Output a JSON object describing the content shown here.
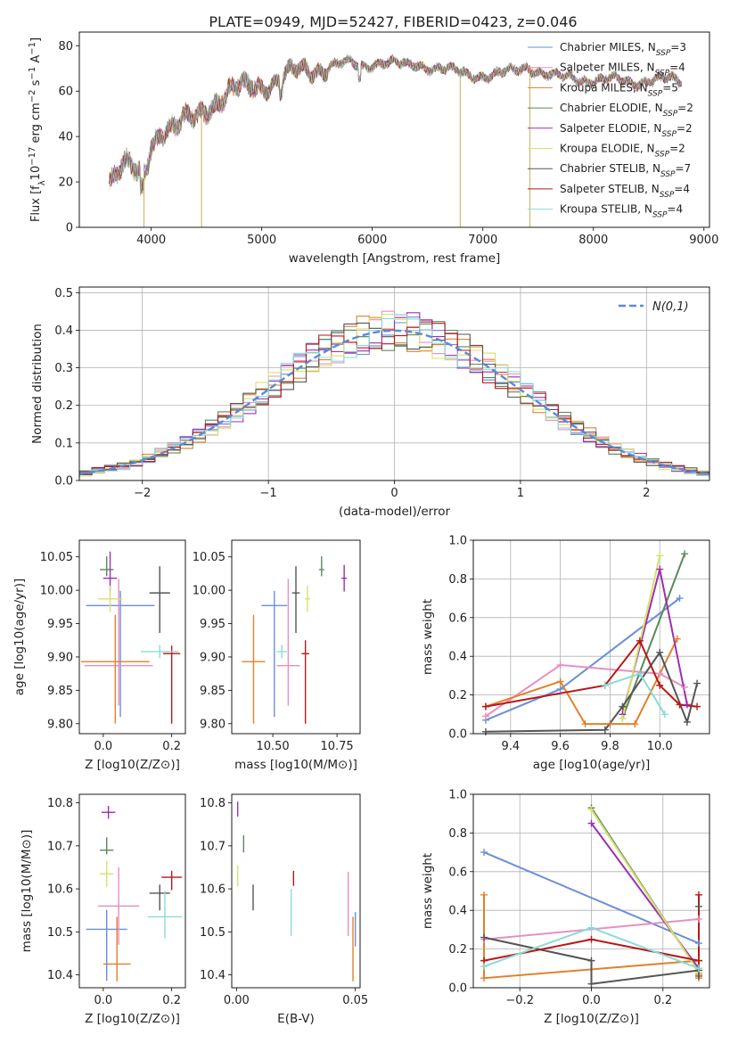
{
  "suptitle": "PLATE=0949, MJD=52427, FIBERID=0423, z=0.046",
  "series": [
    {
      "name": "Chabrier MILES",
      "nssp": "3",
      "color": "#6a8fd8"
    },
    {
      "name": "Salpeter MILES",
      "nssp": "4",
      "color": "#e98fc2"
    },
    {
      "name": "Kroupa MILES",
      "nssp": "5",
      "color": "#e0812c"
    },
    {
      "name": "Chabrier ELODIE",
      "nssp": "2",
      "color": "#5a8a5a"
    },
    {
      "name": "Salpeter ELODIE",
      "nssp": "2",
      "color": "#9b2fb0"
    },
    {
      "name": "Kroupa ELODIE",
      "nssp": "2",
      "color": "#d8e26a"
    },
    {
      "name": "Chabrier STELIB",
      "nssp": "7",
      "color": "#555555"
    },
    {
      "name": "Salpeter STELIB",
      "nssp": "4",
      "color": "#b81818"
    },
    {
      "name": "Kroupa STELIB",
      "nssp": "4",
      "color": "#8adbd8"
    }
  ],
  "chart_data": [
    {
      "id": "spectrum",
      "type": "line",
      "xlabel": "wavelength [Angstrom, rest frame]",
      "ylabel": "Flux [f_λ 10^-17 erg cm^-2 s^-1 A^-1]",
      "xlim": [
        3350,
        9050
      ],
      "ylim": [
        0,
        86
      ],
      "xticks": [
        4000,
        5000,
        6000,
        7000,
        8000,
        9000
      ],
      "yticks": [
        0,
        20,
        40,
        60,
        80
      ],
      "grid": false,
      "legend_loc": "right",
      "profile": [
        [
          3620,
          21
        ],
        [
          3700,
          26
        ],
        [
          3800,
          27
        ],
        [
          3880,
          22
        ],
        [
          3950,
          24
        ],
        [
          4000,
          37
        ],
        [
          4100,
          44
        ],
        [
          4200,
          44
        ],
        [
          4300,
          46
        ],
        [
          4400,
          48
        ],
        [
          4500,
          53
        ],
        [
          4600,
          56
        ],
        [
          4700,
          59
        ],
        [
          4800,
          61
        ],
        [
          4900,
          62
        ],
        [
          5000,
          63
        ],
        [
          5100,
          64
        ],
        [
          5200,
          66
        ],
        [
          5300,
          68
        ],
        [
          5400,
          69
        ],
        [
          5500,
          70
        ],
        [
          5600,
          71
        ],
        [
          5700,
          72
        ],
        [
          5800,
          72
        ],
        [
          5900,
          71
        ],
        [
          6000,
          72
        ],
        [
          6100,
          73
        ],
        [
          6200,
          72
        ],
        [
          6300,
          71
        ],
        [
          6400,
          72
        ],
        [
          6500,
          71
        ],
        [
          6600,
          70
        ],
        [
          6700,
          69
        ],
        [
          6800,
          68
        ],
        [
          6900,
          67
        ],
        [
          7000,
          67
        ],
        [
          7100,
          67
        ],
        [
          7200,
          68
        ],
        [
          7300,
          69
        ],
        [
          7400,
          71
        ],
        [
          7500,
          69
        ],
        [
          7600,
          67
        ],
        [
          7700,
          66
        ],
        [
          7800,
          66
        ],
        [
          7900,
          65
        ],
        [
          8000,
          65
        ],
        [
          8100,
          65
        ],
        [
          8200,
          65
        ],
        [
          8300,
          64
        ],
        [
          8400,
          64
        ],
        [
          8500,
          65
        ],
        [
          8600,
          65
        ],
        [
          8700,
          65
        ],
        [
          8800,
          64
        ]
      ],
      "dips": [
        [
          3935,
          0
        ],
        [
          4455,
          0
        ],
        [
          6795,
          0
        ],
        [
          7425,
          0
        ]
      ]
    },
    {
      "id": "residuals",
      "type": "line",
      "xlabel": "(data-model)/error",
      "ylabel": "Normed distribution",
      "xlim": [
        -2.5,
        2.5
      ],
      "ylim": [
        0,
        0.515
      ],
      "xticks": [
        -2,
        -1,
        0,
        1,
        2
      ],
      "yticks": [
        0.0,
        0.1,
        0.2,
        0.3,
        0.4,
        0.5
      ],
      "grid": true,
      "legend_loc": "top-right",
      "reference_label": "N(0,1)"
    },
    {
      "id": "age-vs-Z",
      "type": "scatter",
      "xlabel": "Z [log10(Z/Z⊙)]",
      "ylabel": "age [log10(age/yr)]",
      "xlim": [
        -0.07,
        0.24
      ],
      "ylim": [
        9.785,
        10.075
      ],
      "xticks": [
        0.0,
        0.2
      ],
      "yticks": [
        9.8,
        9.85,
        9.9,
        9.95,
        10.0,
        10.05
      ],
      "points": [
        {
          "series": 0,
          "x": 0.05,
          "y": 9.977,
          "xerr": 0.1,
          "yerr": [
            0.167,
            0.022
          ]
        },
        {
          "series": 1,
          "x": 0.045,
          "y": 9.887,
          "xerr": 0.1,
          "yerr": [
            0.06,
            0.13
          ]
        },
        {
          "series": 2,
          "x": 0.035,
          "y": 9.893,
          "xerr": 0.1,
          "yerr": [
            0.093,
            0.07
          ]
        },
        {
          "series": 3,
          "x": 0.01,
          "y": 10.031,
          "xerr": 0.02,
          "yerr": [
            0.01,
            0.02
          ]
        },
        {
          "series": 4,
          "x": 0.02,
          "y": 10.018,
          "xerr": 0.02,
          "yerr": [
            0.02,
            0.04
          ]
        },
        {
          "series": 5,
          "x": 0.02,
          "y": 9.987,
          "xerr": 0.035,
          "yerr": [
            0.02,
            0.02
          ]
        },
        {
          "series": 6,
          "x": 0.165,
          "y": 9.996,
          "xerr": 0.03,
          "yerr": [
            0.06,
            0.04
          ]
        },
        {
          "series": 7,
          "x": 0.2,
          "y": 9.905,
          "xerr": 0.025,
          "yerr": [
            0.105,
            0.012
          ]
        },
        {
          "series": 8,
          "x": 0.165,
          "y": 9.908,
          "xerr": 0.055,
          "yerr": [
            0.01,
            0.01
          ]
        }
      ]
    },
    {
      "id": "age-vs-mass",
      "type": "scatter",
      "xlabel": "mass [log10(M/M⊙)]",
      "ylabel": "",
      "xlim": [
        10.34,
        10.84
      ],
      "ylim": [
        9.785,
        10.075
      ],
      "xticks": [
        10.5,
        10.75
      ],
      "yticks": [
        9.8,
        9.85,
        9.9,
        9.95,
        10.0,
        10.05
      ],
      "points": [
        {
          "series": 0,
          "x": 10.506,
          "y": 9.977,
          "xerr": 0.05,
          "yerr": [
            0.167,
            0.022
          ]
        },
        {
          "series": 1,
          "x": 10.56,
          "y": 9.887,
          "xerr": 0.045,
          "yerr": [
            0.06,
            0.13
          ]
        },
        {
          "series": 2,
          "x": 10.425,
          "y": 9.893,
          "xerr": 0.045,
          "yerr": [
            0.093,
            0.07
          ]
        },
        {
          "series": 3,
          "x": 10.69,
          "y": 10.031,
          "xerr": 0.01,
          "yerr": [
            0.01,
            0.02
          ]
        },
        {
          "series": 4,
          "x": 10.778,
          "y": 10.018,
          "xerr": 0.01,
          "yerr": [
            0.02,
            0.02
          ]
        },
        {
          "series": 5,
          "x": 10.635,
          "y": 9.987,
          "xerr": 0.01,
          "yerr": [
            0.02,
            0.02
          ]
        },
        {
          "series": 6,
          "x": 10.59,
          "y": 9.996,
          "xerr": 0.015,
          "yerr": [
            0.06,
            0.04
          ]
        },
        {
          "series": 7,
          "x": 10.627,
          "y": 9.905,
          "xerr": 0.015,
          "yerr": [
            0.105,
            0.02
          ]
        },
        {
          "series": 8,
          "x": 10.535,
          "y": 9.908,
          "xerr": 0.02,
          "yerr": [
            0.01,
            0.01
          ]
        }
      ]
    },
    {
      "id": "weight-vs-age",
      "type": "line",
      "xlabel": "age [log10(age/yr)]",
      "ylabel": "mass weight",
      "xlim": [
        9.25,
        10.2
      ],
      "ylim": [
        0.0,
        1.0
      ],
      "xticks": [
        9.4,
        9.6,
        9.8,
        10.0
      ],
      "yticks": [
        0.0,
        0.2,
        0.4,
        0.6,
        0.8,
        1.0
      ],
      "grid": true,
      "lines": [
        {
          "series": 0,
          "points": [
            [
              9.3,
              0.07
            ],
            [
              9.6,
              0.23
            ],
            [
              10.08,
              0.7
            ]
          ]
        },
        {
          "series": 1,
          "points": [
            [
              9.3,
              0.09
            ],
            [
              9.6,
              0.355
            ],
            [
              10.0,
              0.31
            ],
            [
              10.1,
              0.24
            ]
          ]
        },
        {
          "series": 2,
          "points": [
            [
              9.3,
              0.14
            ],
            [
              9.6,
              0.27
            ],
            [
              9.7,
              0.05
            ],
            [
              9.8,
              0.05
            ],
            [
              9.9,
              0.05
            ],
            [
              10.07,
              0.49
            ]
          ]
        },
        {
          "series": 3,
          "points": [
            [
              9.85,
              0.08
            ],
            [
              10.1,
              0.93
            ]
          ]
        },
        {
          "series": 4,
          "points": [
            [
              9.85,
              0.1
            ],
            [
              10.0,
              0.85
            ],
            [
              10.11,
              0.15
            ]
          ]
        },
        {
          "series": 5,
          "points": [
            [
              9.85,
              0.08
            ],
            [
              10.0,
              0.92
            ]
          ]
        },
        {
          "series": 6,
          "points": [
            [
              9.3,
              0.01
            ],
            [
              9.78,
              0.02
            ],
            [
              9.85,
              0.14
            ],
            [
              10.0,
              0.42
            ],
            [
              10.11,
              0.06
            ],
            [
              10.15,
              0.26
            ]
          ]
        },
        {
          "series": 7,
          "points": [
            [
              9.3,
              0.14
            ],
            [
              9.78,
              0.25
            ],
            [
              9.92,
              0.48
            ],
            [
              10.0,
              0.25
            ],
            [
              10.08,
              0.15
            ],
            [
              10.15,
              0.14
            ]
          ]
        },
        {
          "series": 8,
          "points": [
            [
              9.78,
              0.25
            ],
            [
              9.92,
              0.31
            ],
            [
              10.02,
              0.1
            ]
          ]
        }
      ]
    },
    {
      "id": "mass-vs-Z",
      "type": "scatter",
      "xlabel": "Z [log10(Z/Z⊙)]",
      "ylabel": "mass [log10(M/M⊙)]",
      "xlim": [
        -0.07,
        0.24
      ],
      "ylim": [
        10.37,
        10.82
      ],
      "xticks": [
        0.0,
        0.2
      ],
      "yticks": [
        10.4,
        10.5,
        10.6,
        10.7,
        10.8
      ],
      "points": [
        {
          "series": 0,
          "x": 0.01,
          "y": 10.506,
          "xerr": 0.06,
          "yerr": [
            0.12,
            0.045
          ]
        },
        {
          "series": 1,
          "x": 0.045,
          "y": 10.56,
          "xerr": 0.06,
          "yerr": [
            0.09,
            0.09
          ]
        },
        {
          "series": 2,
          "x": 0.04,
          "y": 10.425,
          "xerr": 0.04,
          "yerr": [
            0.04,
            0.11
          ]
        },
        {
          "series": 3,
          "x": 0.01,
          "y": 10.69,
          "xerr": 0.02,
          "yerr": [
            0.01,
            0.03
          ]
        },
        {
          "series": 4,
          "x": 0.015,
          "y": 10.778,
          "xerr": 0.02,
          "yerr": [
            0.015,
            0.015
          ]
        },
        {
          "series": 5,
          "x": 0.01,
          "y": 10.635,
          "xerr": 0.02,
          "yerr": [
            0.03,
            0.03
          ]
        },
        {
          "series": 6,
          "x": 0.165,
          "y": 10.59,
          "xerr": 0.03,
          "yerr": [
            0.04,
            0.02
          ]
        },
        {
          "series": 7,
          "x": 0.2,
          "y": 10.627,
          "xerr": 0.03,
          "yerr": [
            0.03,
            0.015
          ]
        },
        {
          "series": 8,
          "x": 0.18,
          "y": 10.535,
          "xerr": 0.05,
          "yerr": [
            0.05,
            0.06
          ]
        }
      ]
    },
    {
      "id": "mass-vs-EBV",
      "type": "scatter",
      "xlabel": "E(B-V)",
      "ylabel": "",
      "xlim": [
        -0.002,
        0.052
      ],
      "ylim": [
        10.37,
        10.82
      ],
      "xticks": [
        0.0,
        0.05
      ],
      "yticks": [
        10.4,
        10.5,
        10.6,
        10.7,
        10.8
      ],
      "points": [
        {
          "series": 0,
          "x": 0.05,
          "y": 10.506,
          "xerr": 0,
          "yerr": [
            0.04,
            0.04
          ]
        },
        {
          "series": 1,
          "x": 0.047,
          "y": 10.56,
          "xerr": 0,
          "yerr": [
            0.07,
            0.08
          ]
        },
        {
          "series": 2,
          "x": 0.049,
          "y": 10.425,
          "xerr": 0,
          "yerr": [
            0.04,
            0.11
          ]
        },
        {
          "series": 3,
          "x": 0.003,
          "y": 10.7,
          "xerr": 0,
          "yerr": [
            0.015,
            0.025
          ]
        },
        {
          "series": 4,
          "x": 0.0005,
          "y": 10.778,
          "xerr": 0,
          "yerr": [
            0.01,
            0.025
          ]
        },
        {
          "series": 5,
          "x": 0.0005,
          "y": 10.635,
          "xerr": 0,
          "yerr": [
            0.03,
            0.02
          ]
        },
        {
          "series": 6,
          "x": 0.007,
          "y": 10.59,
          "xerr": 0,
          "yerr": [
            0.04,
            0.02
          ]
        },
        {
          "series": 7,
          "x": 0.024,
          "y": 10.627,
          "xerr": 0,
          "yerr": [
            0.02,
            0.015
          ]
        },
        {
          "series": 8,
          "x": 0.023,
          "y": 10.55,
          "xerr": 0,
          "yerr": [
            0.06,
            0.05
          ]
        }
      ]
    },
    {
      "id": "weight-vs-Z",
      "type": "line",
      "xlabel": "Z [log10(Z/Z⊙)]",
      "ylabel": "mass weight",
      "xlim": [
        -0.33,
        0.33
      ],
      "ylim": [
        0.0,
        1.0
      ],
      "xticks": [
        -0.2,
        0.0,
        0.2
      ],
      "yticks": [
        0.0,
        0.2,
        0.4,
        0.6,
        0.8,
        1.0
      ],
      "grid": true,
      "lines": [
        {
          "series": 0,
          "points": [
            [
              -0.3,
              0.7
            ],
            [
              0.3,
              0.23
            ]
          ]
        },
        {
          "series": 1,
          "points": [
            [
              -0.3,
              0.25
            ],
            [
              0.3,
              0.355
            ]
          ]
        },
        {
          "series": 2,
          "points": [
            [
              -0.3,
              0.48
            ],
            [
              -0.3,
              0.05
            ],
            [
              0.3,
              0.14
            ],
            [
              0.3,
              0.05
            ],
            [
              0.3,
              0.07
            ]
          ]
        },
        {
          "series": 3,
          "points": [
            [
              0.0,
              0.93
            ],
            [
              0.3,
              0.08
            ]
          ]
        },
        {
          "series": 4,
          "points": [
            [
              0.0,
              0.85
            ],
            [
              0.3,
              0.1
            ]
          ]
        },
        {
          "series": 5,
          "points": [
            [
              0.0,
              0.92
            ],
            [
              0.3,
              0.08
            ]
          ]
        },
        {
          "series": 6,
          "points": [
            [
              -0.3,
              0.26
            ],
            [
              0.0,
              0.14
            ],
            [
              0.0,
              0.02
            ],
            [
              0.3,
              0.09
            ],
            [
              0.3,
              0.42
            ],
            [
              0.3,
              0.06
            ]
          ]
        },
        {
          "series": 7,
          "points": [
            [
              -0.3,
              0.14
            ],
            [
              0.0,
              0.25
            ],
            [
              0.3,
              0.14
            ],
            [
              0.3,
              0.48
            ]
          ]
        },
        {
          "series": 8,
          "points": [
            [
              -0.3,
              0.11
            ],
            [
              0.0,
              0.31
            ],
            [
              0.3,
              0.1
            ]
          ]
        }
      ]
    }
  ]
}
